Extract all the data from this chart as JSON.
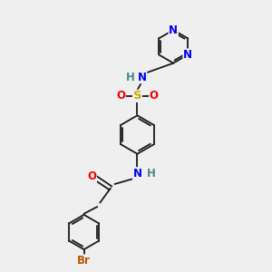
{
  "bg_color": "#efefef",
  "bond_color": "#1a1a1a",
  "bond_width": 1.3,
  "atom_colors": {
    "N": "#0000ee",
    "O": "#ee0000",
    "S": "#ccaa00",
    "Br": "#bb5500",
    "H": "#4a8888",
    "C": "#1a1a1a"
  },
  "font_size": 8.5,
  "fig_size": [
    3.0,
    3.0
  ],
  "dpi": 100
}
